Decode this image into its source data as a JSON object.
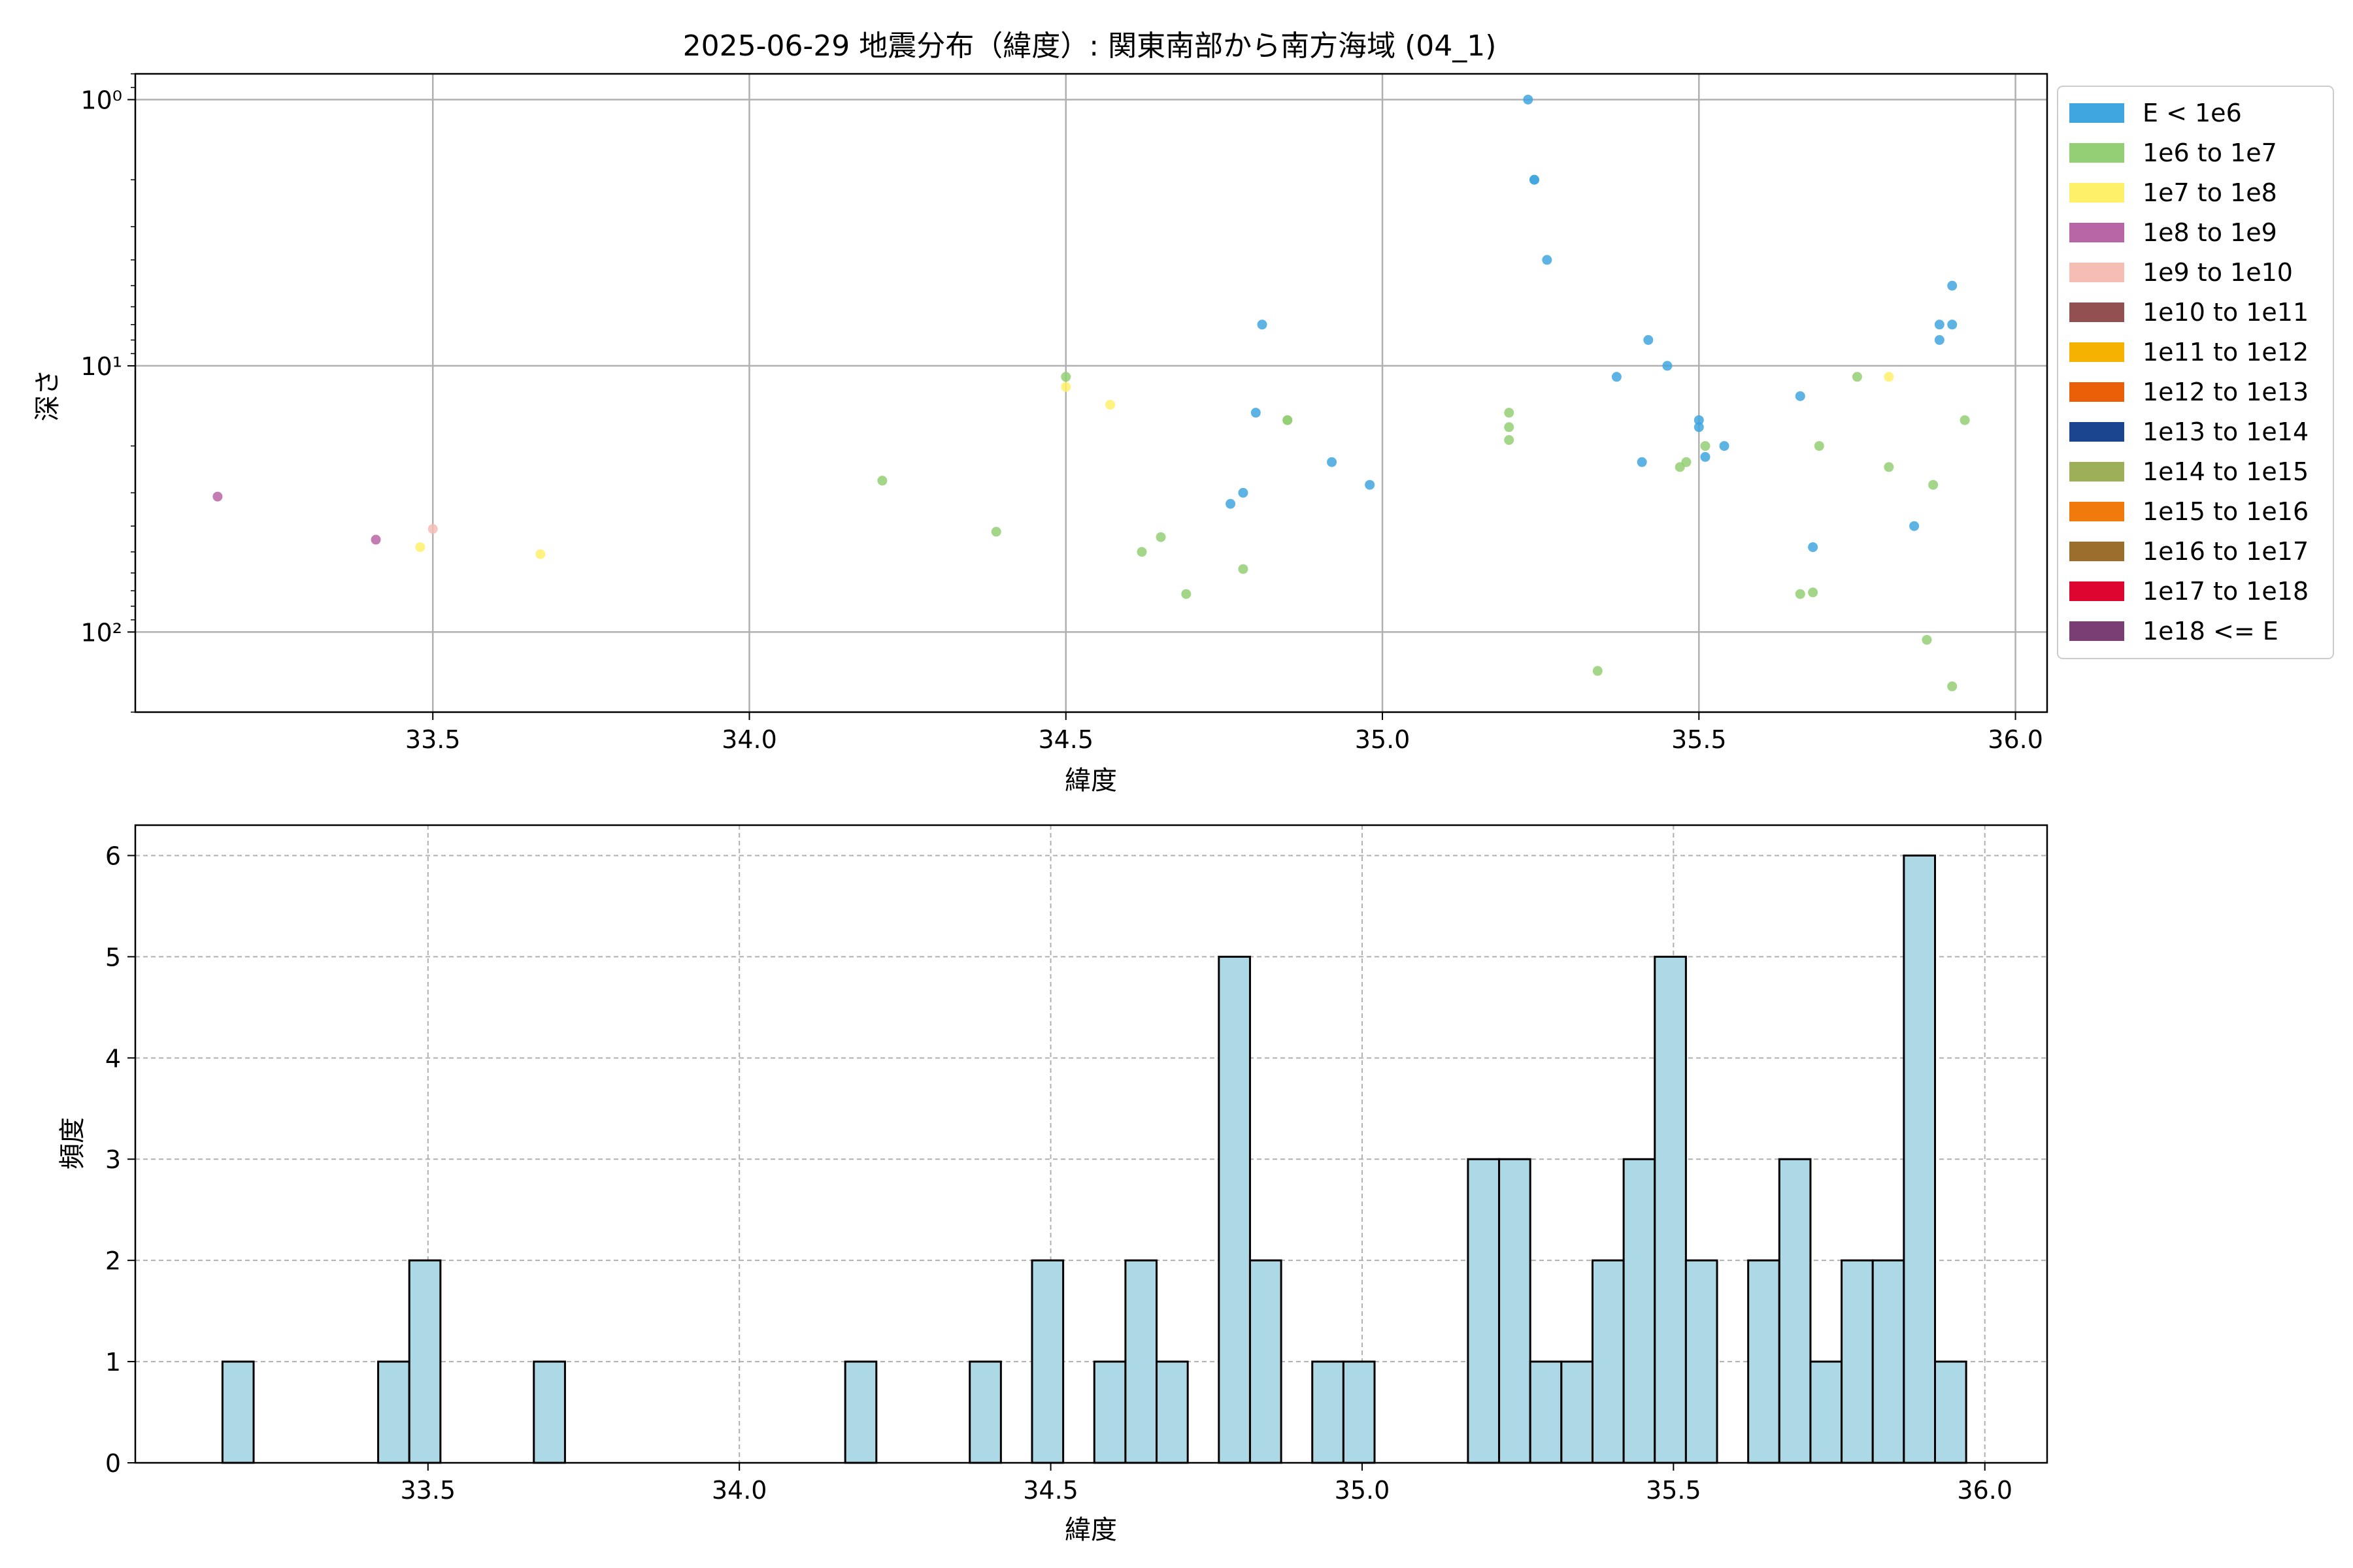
{
  "chart_data": [
    {
      "type": "scatter",
      "title": "2025-06-29 地震分布（緯度）: 関東南部から南方海域 (04_1)",
      "xlabel": "緯度",
      "ylabel": "深さ",
      "xlim": [
        33.03,
        36.05
      ],
      "ylim": [
        200,
        0.8
      ],
      "yscale": "log",
      "y_inverted": true,
      "xticks": [
        33.5,
        34.0,
        34.5,
        35.0,
        35.5,
        36.0
      ],
      "xtick_labels": [
        "33.5",
        "34.0",
        "34.5",
        "35.0",
        "35.5",
        "36.0"
      ],
      "yticks": [
        1,
        10,
        100
      ],
      "ytick_labels": [
        "10⁰",
        "10¹",
        "10²"
      ],
      "grid": true,
      "legend": {
        "placement": "outside-right-top",
        "entries": [
          {
            "label": "E < 1e6",
            "color": "#3fa6df"
          },
          {
            "label": "1e6 to 1e7",
            "color": "#93cf74"
          },
          {
            "label": "1e7 to 1e8",
            "color": "#fff06a"
          },
          {
            "label": "1e8 to 1e9",
            "color": "#b866a5"
          },
          {
            "label": "1e9 to 1e10",
            "color": "#f5bdb4"
          },
          {
            "label": "1e10 to 1e11",
            "color": "#925150"
          },
          {
            "label": "1e11 to 1e12",
            "color": "#f5b200"
          },
          {
            "label": "1e12 to 1e13",
            "color": "#ea6008"
          },
          {
            "label": "1e13 to 1e14",
            "color": "#1c4590"
          },
          {
            "label": "1e14 to 1e15",
            "color": "#9eb057"
          },
          {
            "label": "1e15 to 1e16",
            "color": "#f07a0c"
          },
          {
            "label": "1e16 to 1e17",
            "color": "#9b6f2b"
          },
          {
            "label": "1e17 to 1e18",
            "color": "#df0531"
          },
          {
            "label": "1e18 <= E",
            "color": "#7a3e74"
          }
        ]
      },
      "series": [
        {
          "name": "E < 1e6",
          "color": "#3fa6df",
          "points": [
            {
              "x": 35.23,
              "y": 1.0
            },
            {
              "x": 35.24,
              "y": 2.0
            },
            {
              "x": 35.24,
              "y": 2.0
            },
            {
              "x": 35.26,
              "y": 4.0
            },
            {
              "x": 34.81,
              "y": 7.0
            },
            {
              "x": 34.8,
              "y": 15.0
            },
            {
              "x": 34.78,
              "y": 30.0
            },
            {
              "x": 34.76,
              "y": 33.0
            },
            {
              "x": 34.92,
              "y": 23.0
            },
            {
              "x": 34.98,
              "y": 28.0
            },
            {
              "x": 35.37,
              "y": 11.0
            },
            {
              "x": 35.42,
              "y": 8.0
            },
            {
              "x": 35.45,
              "y": 10.0
            },
            {
              "x": 35.41,
              "y": 23.0
            },
            {
              "x": 35.5,
              "y": 16.0
            },
            {
              "x": 35.5,
              "y": 17.0
            },
            {
              "x": 35.51,
              "y": 22.0
            },
            {
              "x": 35.54,
              "y": 20.0
            },
            {
              "x": 35.66,
              "y": 13.0
            },
            {
              "x": 35.68,
              "y": 48.0
            },
            {
              "x": 35.84,
              "y": 40.0
            },
            {
              "x": 35.88,
              "y": 7.0
            },
            {
              "x": 35.88,
              "y": 8.0
            },
            {
              "x": 35.9,
              "y": 5.0
            },
            {
              "x": 35.9,
              "y": 7.0
            }
          ]
        },
        {
          "name": "1e6 to 1e7",
          "color": "#93cf74",
          "points": [
            {
              "x": 34.21,
              "y": 27.0
            },
            {
              "x": 34.39,
              "y": 42.0
            },
            {
              "x": 34.5,
              "y": 11.0
            },
            {
              "x": 34.62,
              "y": 50.0
            },
            {
              "x": 34.65,
              "y": 44.0
            },
            {
              "x": 34.69,
              "y": 72.0
            },
            {
              "x": 34.78,
              "y": 58.0
            },
            {
              "x": 34.85,
              "y": 16.0
            },
            {
              "x": 34.85,
              "y": 16.0
            },
            {
              "x": 35.2,
              "y": 15.0
            },
            {
              "x": 35.2,
              "y": 17.0
            },
            {
              "x": 35.2,
              "y": 19.0
            },
            {
              "x": 35.34,
              "y": 140.0
            },
            {
              "x": 35.47,
              "y": 24.0
            },
            {
              "x": 35.48,
              "y": 23.0
            },
            {
              "x": 35.51,
              "y": 20.0
            },
            {
              "x": 35.66,
              "y": 72.0
            },
            {
              "x": 35.68,
              "y": 71.0
            },
            {
              "x": 35.69,
              "y": 20.0
            },
            {
              "x": 35.75,
              "y": 11.0
            },
            {
              "x": 35.8,
              "y": 24.0
            },
            {
              "x": 35.86,
              "y": 107.0
            },
            {
              "x": 35.87,
              "y": 28.0
            },
            {
              "x": 35.9,
              "y": 160.0
            },
            {
              "x": 35.92,
              "y": 16.0
            }
          ]
        },
        {
          "name": "1e7 to 1e8",
          "color": "#fff06a",
          "points": [
            {
              "x": 33.48,
              "y": 48.0
            },
            {
              "x": 33.67,
              "y": 51.0
            },
            {
              "x": 34.5,
              "y": 12.0
            },
            {
              "x": 34.57,
              "y": 14.0
            },
            {
              "x": 35.8,
              "y": 11.0
            }
          ]
        },
        {
          "name": "1e8 to 1e9",
          "color": "#b866a5",
          "points": [
            {
              "x": 33.16,
              "y": 31.0
            },
            {
              "x": 33.41,
              "y": 45.0
            }
          ]
        },
        {
          "name": "1e9 to 1e10",
          "color": "#f5bdb4",
          "points": [
            {
              "x": 33.5,
              "y": 41.0
            }
          ]
        }
      ]
    },
    {
      "type": "bar",
      "title": "",
      "xlabel": "緯度",
      "ylabel": "頻度",
      "xlim": [
        33.03,
        36.1
      ],
      "ylim": [
        0,
        6.3
      ],
      "xticks": [
        33.5,
        34.0,
        34.5,
        35.0,
        35.5,
        36.0
      ],
      "xtick_labels": [
        "33.5",
        "34.0",
        "34.5",
        "35.0",
        "35.5",
        "36.0"
      ],
      "yticks": [
        0,
        1,
        2,
        3,
        4,
        5,
        6
      ],
      "ytick_labels": [
        "0",
        "1",
        "2",
        "3",
        "4",
        "5",
        "6"
      ],
      "grid": true,
      "bar_color": "#add8e6",
      "bins": [
        {
          "x0": 33.17,
          "x1": 33.22,
          "count": 1
        },
        {
          "x0": 33.42,
          "x1": 33.47,
          "count": 1
        },
        {
          "x0": 33.47,
          "x1": 33.52,
          "count": 2
        },
        {
          "x0": 33.67,
          "x1": 33.72,
          "count": 1
        },
        {
          "x0": 34.17,
          "x1": 34.22,
          "count": 1
        },
        {
          "x0": 34.37,
          "x1": 34.42,
          "count": 1
        },
        {
          "x0": 34.47,
          "x1": 34.52,
          "count": 2
        },
        {
          "x0": 34.57,
          "x1": 34.62,
          "count": 1
        },
        {
          "x0": 34.62,
          "x1": 34.67,
          "count": 2
        },
        {
          "x0": 34.67,
          "x1": 34.72,
          "count": 1
        },
        {
          "x0": 34.77,
          "x1": 34.82,
          "count": 5
        },
        {
          "x0": 34.82,
          "x1": 34.87,
          "count": 2
        },
        {
          "x0": 34.92,
          "x1": 34.97,
          "count": 1
        },
        {
          "x0": 34.97,
          "x1": 35.02,
          "count": 1
        },
        {
          "x0": 35.17,
          "x1": 35.22,
          "count": 3
        },
        {
          "x0": 35.22,
          "x1": 35.27,
          "count": 3
        },
        {
          "x0": 35.27,
          "x1": 35.32,
          "count": 1
        },
        {
          "x0": 35.32,
          "x1": 35.37,
          "count": 1
        },
        {
          "x0": 35.37,
          "x1": 35.42,
          "count": 2
        },
        {
          "x0": 35.42,
          "x1": 35.47,
          "count": 3
        },
        {
          "x0": 35.47,
          "x1": 35.52,
          "count": 5
        },
        {
          "x0": 35.52,
          "x1": 35.57,
          "count": 2
        },
        {
          "x0": 35.62,
          "x1": 35.67,
          "count": 2
        },
        {
          "x0": 35.67,
          "x1": 35.72,
          "count": 3
        },
        {
          "x0": 35.72,
          "x1": 35.77,
          "count": 1
        },
        {
          "x0": 35.77,
          "x1": 35.82,
          "count": 2
        },
        {
          "x0": 35.82,
          "x1": 35.87,
          "count": 2
        },
        {
          "x0": 35.87,
          "x1": 35.92,
          "count": 6
        },
        {
          "x0": 35.92,
          "x1": 35.97,
          "count": 1
        }
      ]
    }
  ]
}
